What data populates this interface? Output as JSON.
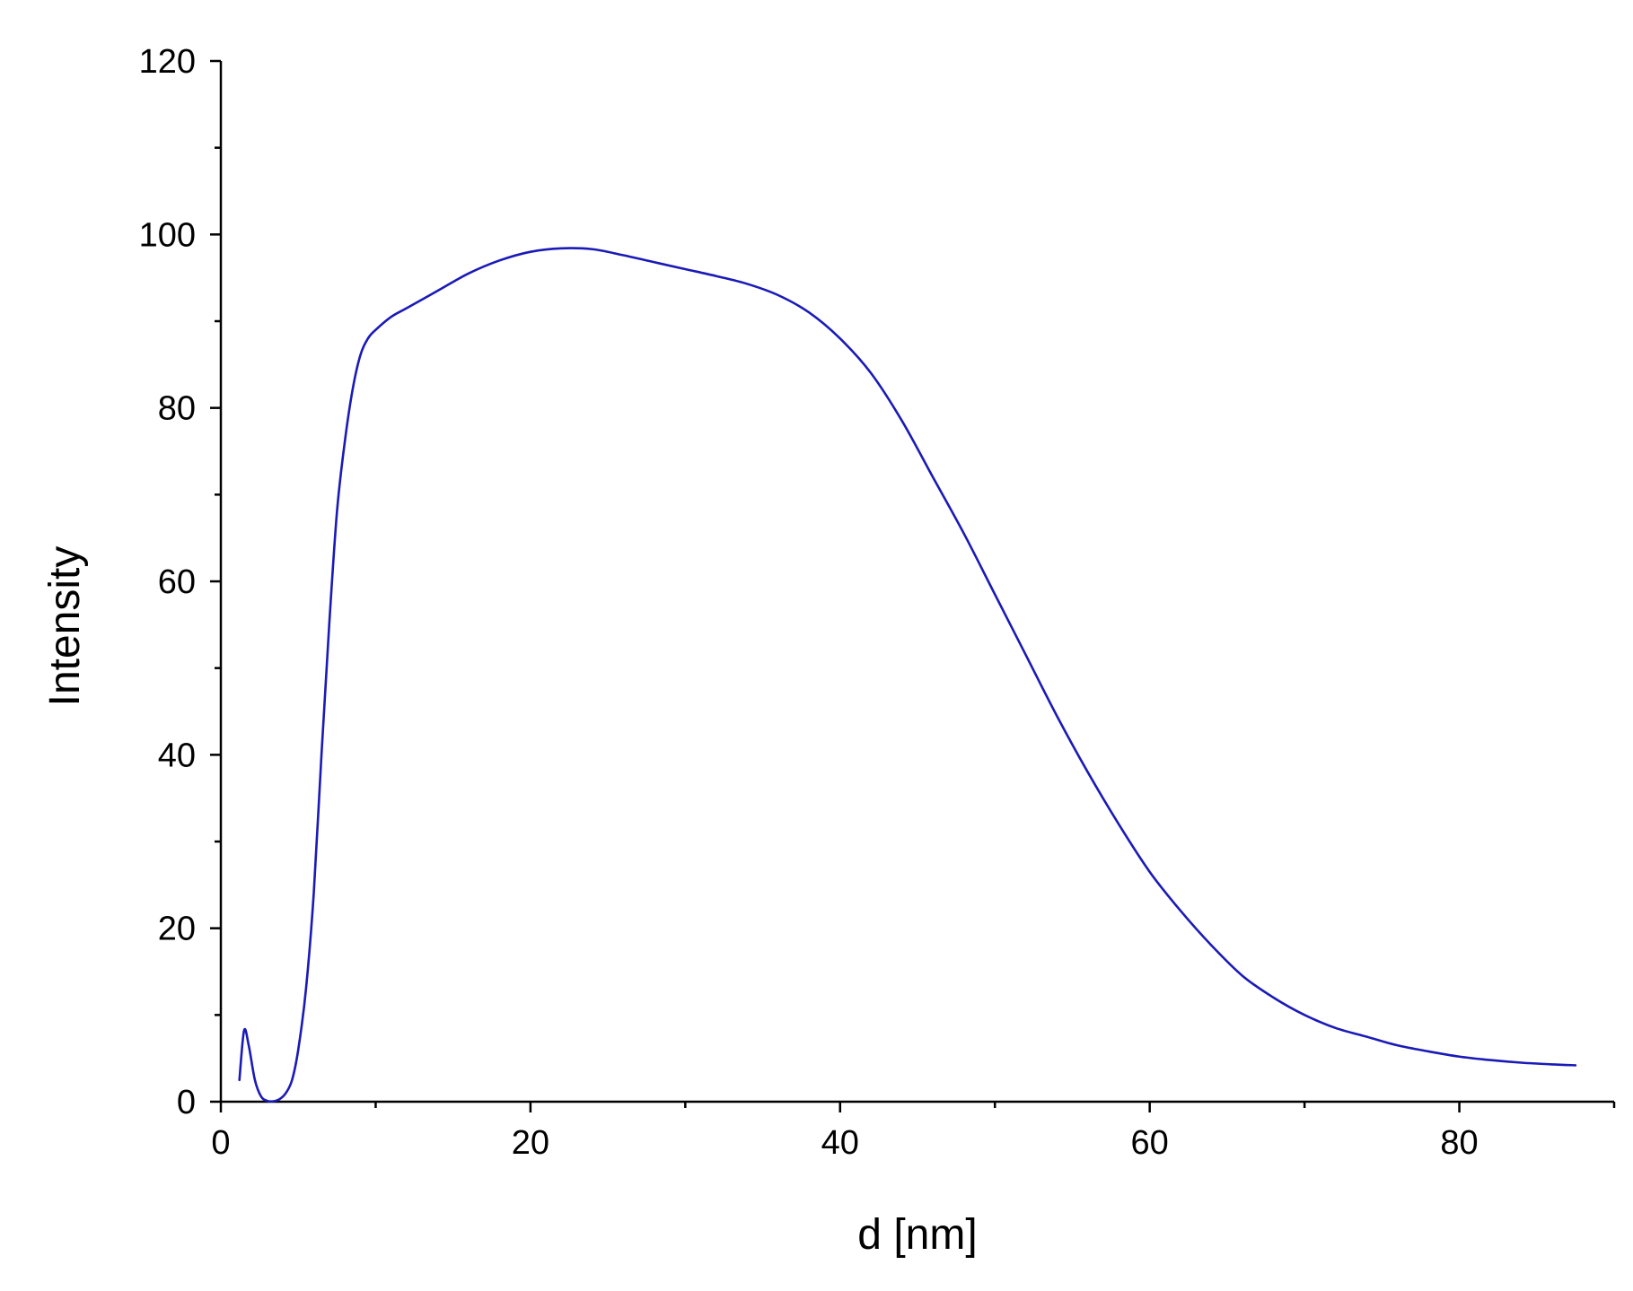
{
  "chart_data": {
    "type": "line",
    "title": "",
    "xlabel": "d [nm]",
    "ylabel": "Intensity",
    "xlim": [
      0,
      90
    ],
    "ylim": [
      0,
      120
    ],
    "x_major_ticks": [
      0,
      20,
      40,
      60,
      80
    ],
    "x_tick_labels": [
      "0",
      "20",
      "40",
      "60",
      "80"
    ],
    "x_minor_ticks": [
      10,
      30,
      50,
      70,
      90
    ],
    "y_major_ticks": [
      0,
      20,
      40,
      60,
      80,
      100,
      120
    ],
    "y_tick_labels": [
      "0",
      "20",
      "40",
      "60",
      "80",
      "100",
      "120"
    ],
    "y_minor_ticks": [
      10,
      30,
      50,
      70,
      90,
      110
    ],
    "grid": false,
    "legend": "none",
    "line_color": "#1a1ab8",
    "series": [
      {
        "x": [
          1.2,
          1.5,
          1.8,
          2.2,
          2.6,
          3.0,
          3.4,
          3.8,
          4.2,
          4.6,
          5.0,
          5.5,
          6.0,
          6.5,
          7.0,
          7.5,
          8.0,
          8.5,
          9.0,
          9.5,
          10.0,
          11.0,
          12.0,
          14.0,
          16.0,
          18.0,
          20.0,
          22.0,
          24.0,
          26.0,
          28.0,
          30.0,
          32.0,
          34.0,
          36.0,
          38.0,
          40.0,
          42.0,
          44.0,
          46.0,
          48.0,
          50.0,
          52.0,
          54.0,
          56.0,
          58.0,
          60.0,
          62.0,
          64.0,
          66.0,
          68.0,
          70.0,
          72.0,
          74.0,
          76.0,
          78.0,
          80.0,
          82.0,
          84.0,
          86.0,
          87.5
        ],
        "y": [
          2.5,
          8.2,
          6.5,
          2.5,
          0.6,
          0.1,
          0.05,
          0.3,
          1.0,
          2.5,
          6.0,
          13.0,
          24.0,
          40.0,
          55.0,
          68.0,
          76.0,
          82.0,
          86.0,
          88.0,
          89.0,
          90.5,
          91.5,
          93.5,
          95.5,
          97.0,
          98.0,
          98.4,
          98.3,
          97.6,
          96.8,
          96.0,
          95.2,
          94.3,
          93.0,
          91.0,
          88.0,
          84.0,
          78.5,
          72.0,
          65.5,
          58.5,
          51.5,
          44.5,
          38.0,
          32.0,
          26.5,
          22.0,
          18.0,
          14.5,
          12.0,
          10.0,
          8.5,
          7.5,
          6.5,
          5.8,
          5.2,
          4.8,
          4.5,
          4.3,
          4.2
        ]
      }
    ]
  }
}
